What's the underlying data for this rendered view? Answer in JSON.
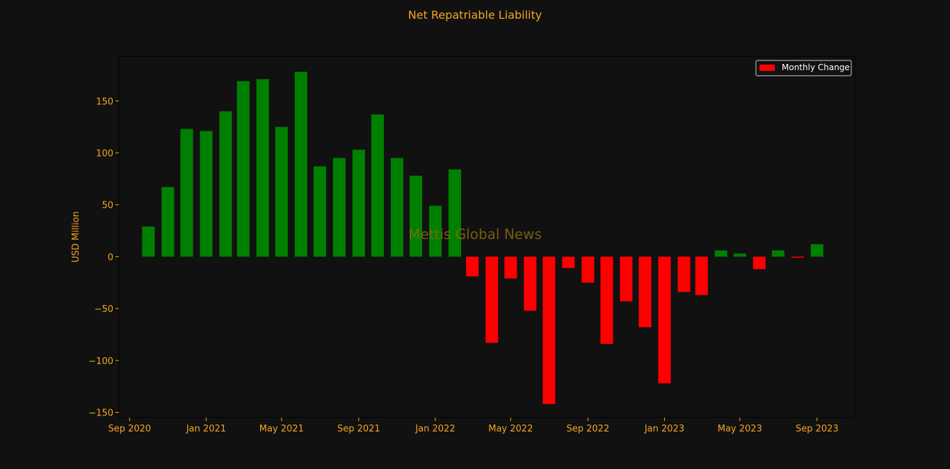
{
  "colors": {
    "background": "#111111",
    "text": "#F5A623",
    "positive": "#008000",
    "negative": "#FF0000",
    "axis": "#000000",
    "watermark": "#8B6914"
  },
  "watermark": "Mettis Global News",
  "chart_data": {
    "type": "bar",
    "title": "Net Repatriable Liability",
    "xlabel": "",
    "ylabel": "USD Million",
    "ylim": [
      -155,
      193
    ],
    "yticks": [
      -150,
      -100,
      -50,
      0,
      50,
      100,
      150
    ],
    "xlim": [
      "2020-08-15",
      "2023-10-31"
    ],
    "xticks": [
      {
        "date": "2020-09-01",
        "label": "Sep 2020"
      },
      {
        "date": "2021-01-01",
        "label": "Jan 2021"
      },
      {
        "date": "2021-05-01",
        "label": "May 2021"
      },
      {
        "date": "2021-09-01",
        "label": "Sep 2021"
      },
      {
        "date": "2022-01-01",
        "label": "Jan 2022"
      },
      {
        "date": "2022-05-01",
        "label": "May 2022"
      },
      {
        "date": "2022-09-01",
        "label": "Sep 2022"
      },
      {
        "date": "2023-01-01",
        "label": "Jan 2023"
      },
      {
        "date": "2023-05-01",
        "label": "May 2023"
      },
      {
        "date": "2023-09-01",
        "label": "Sep 2023"
      }
    ],
    "legend": {
      "label": "Monthly Change",
      "position": "top-right"
    },
    "grid": false,
    "x": [
      "2020-10-01",
      "2020-11-01",
      "2020-12-01",
      "2021-01-01",
      "2021-02-01",
      "2021-03-01",
      "2021-04-01",
      "2021-05-01",
      "2021-06-01",
      "2021-07-01",
      "2021-08-01",
      "2021-09-01",
      "2021-10-01",
      "2021-11-01",
      "2021-12-01",
      "2022-01-01",
      "2022-02-01",
      "2022-03-01",
      "2022-04-01",
      "2022-05-01",
      "2022-06-01",
      "2022-07-01",
      "2022-08-01",
      "2022-09-01",
      "2022-10-01",
      "2022-11-01",
      "2022-12-01",
      "2023-01-01",
      "2023-02-01",
      "2023-03-01",
      "2023-04-01",
      "2023-05-01",
      "2023-06-01",
      "2023-07-01",
      "2023-08-01",
      "2023-09-01"
    ],
    "values": [
      29,
      67,
      123,
      121,
      140,
      169,
      171,
      125,
      178,
      87,
      95,
      103,
      137,
      95,
      78,
      49,
      84,
      -19,
      -83,
      -21,
      -52,
      -142,
      -11,
      -25,
      -84,
      -43,
      -68,
      -122,
      -34,
      -37,
      6,
      3,
      -12,
      6,
      -1,
      12
    ]
  }
}
